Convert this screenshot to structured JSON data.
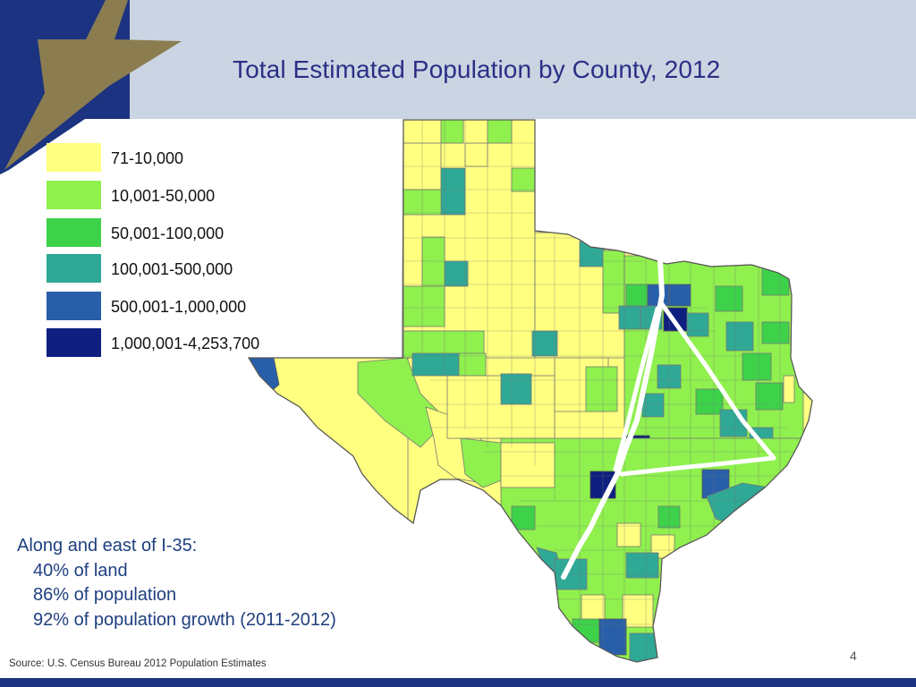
{
  "title": "Total Estimated Population by County, 2012",
  "legend": [
    {
      "label": "71-10,000",
      "color": "#ffff80"
    },
    {
      "label": "10,001-50,000",
      "color": "#8ff04e"
    },
    {
      "label": "50,001-100,000",
      "color": "#3dd24a"
    },
    {
      "label": "100,001-500,000",
      "color": "#2fa896"
    },
    {
      "label": "500,001-1,000,000",
      "color": "#285fa8"
    },
    {
      "label": "1,000,001-4,253,700",
      "color": "#0e1f80"
    }
  ],
  "callout": {
    "heading": "Along and east of I-35:",
    "lines": [
      "40% of land",
      "86% of population",
      "92% of population growth (2011-2012)"
    ]
  },
  "source": "Source: U.S. Census Bureau 2012 Population Estimates",
  "slide_number": "4",
  "colors": {
    "header_band": "#cbd4e2",
    "logo_navy": "#1c3381",
    "logo_gold": "#8b7d50",
    "title_text": "#2a2f86",
    "triangle_outline": "#ffffff"
  }
}
